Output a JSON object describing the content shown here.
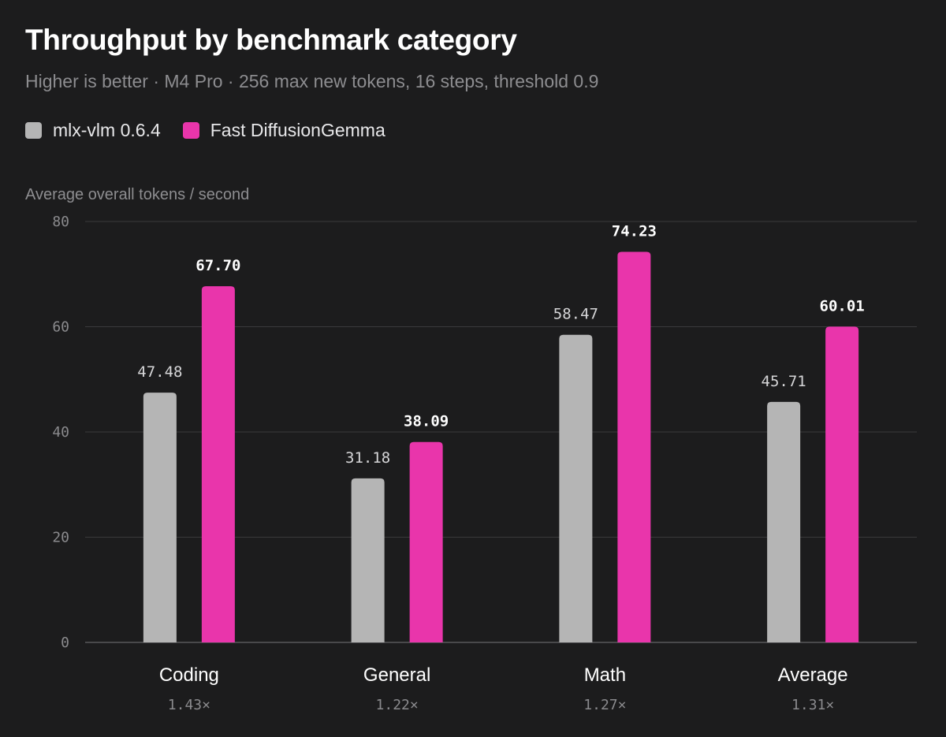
{
  "colors": {
    "background": "#1c1c1d",
    "mlx": "#b5b5b5",
    "fast": "#e935ab",
    "grid": "#3a3a3c"
  },
  "chart_data": {
    "type": "bar",
    "title": "Throughput by benchmark category",
    "subtitle": "Higher is better · M4 Pro · 256 max new tokens, 16 steps, threshold 0.9",
    "ylabel": "Average overall tokens / second",
    "xlabel": "",
    "ylim": [
      0,
      80
    ],
    "yticks": [
      0,
      20,
      40,
      60,
      80
    ],
    "grid": true,
    "legend_position": "top-left",
    "categories": [
      "Coding",
      "General",
      "Math",
      "Average"
    ],
    "speedups": [
      "1.43×",
      "1.22×",
      "1.27×",
      "1.31×"
    ],
    "series": [
      {
        "name": "mlx-vlm 0.6.4",
        "color": "#b5b5b5",
        "values": [
          47.48,
          31.18,
          58.47,
          45.71
        ],
        "labels": [
          "47.48",
          "31.18",
          "58.47",
          "45.71"
        ]
      },
      {
        "name": "Fast DiffusionGemma",
        "color": "#e935ab",
        "values": [
          67.7,
          38.09,
          74.23,
          60.01
        ],
        "labels": [
          "67.70",
          "38.09",
          "74.23",
          "60.01"
        ]
      }
    ]
  }
}
